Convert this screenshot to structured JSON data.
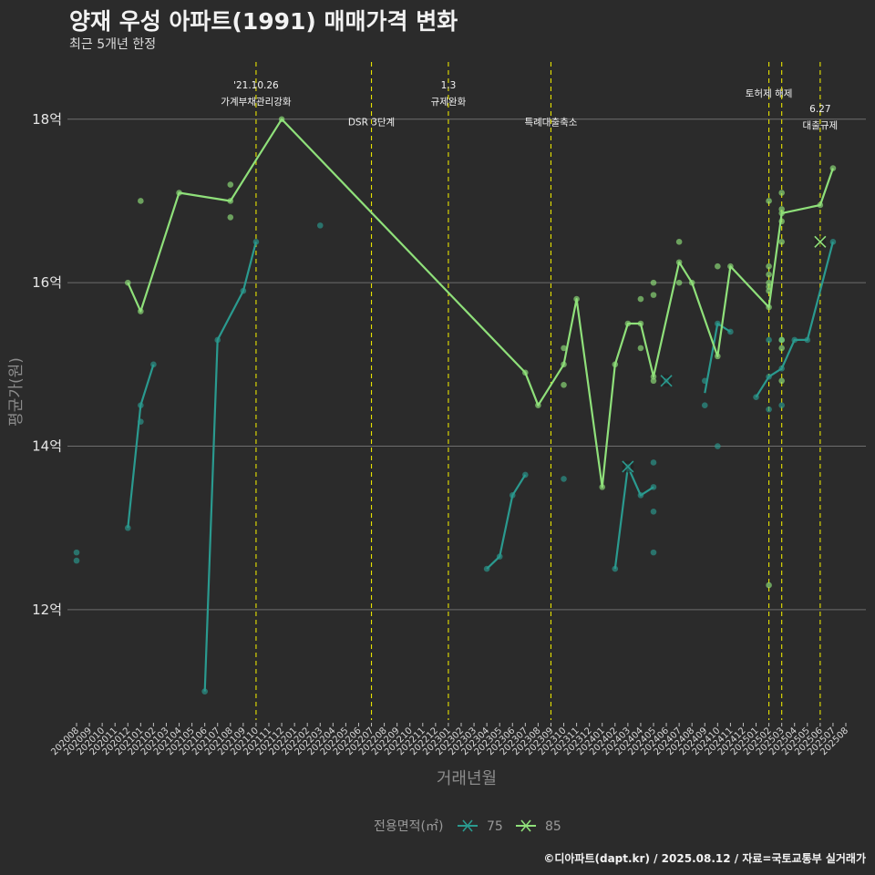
{
  "title": "양재 우성 아파트(1991) 매매가격 변화",
  "subtitle": "최근 5개년 한정",
  "caption": "©디아파트(dapt.kr) / 2025.08.12 / 자료=국토교통부 실거래가",
  "chart_data": {
    "type": "line",
    "xlabel": "거래년월",
    "ylabel": "평균가(원)",
    "ylim": [
      10.65,
      18.7
    ],
    "yticks": [
      {
        "value": 12,
        "label": "12억"
      },
      {
        "value": 14,
        "label": "14억"
      },
      {
        "value": 16,
        "label": "16억"
      },
      {
        "value": 18,
        "label": "18억"
      }
    ],
    "grid": true,
    "x_categories": [
      "202008",
      "202009",
      "202010",
      "202011",
      "202012",
      "202101",
      "202102",
      "202103",
      "202104",
      "202105",
      "202106",
      "202107",
      "202108",
      "202109",
      "202110",
      "202111",
      "202112",
      "202201",
      "202202",
      "202203",
      "202204",
      "202205",
      "202206",
      "202207",
      "202208",
      "202209",
      "202210",
      "202211",
      "202212",
      "202301",
      "202302",
      "202303",
      "202304",
      "202305",
      "202306",
      "202307",
      "202308",
      "202309",
      "202310",
      "202311",
      "202312",
      "202401",
      "202402",
      "202403",
      "202404",
      "202405",
      "202406",
      "202407",
      "202408",
      "202409",
      "202410",
      "202411",
      "202412",
      "202501",
      "202502",
      "202503",
      "202504",
      "202505",
      "202506",
      "202507",
      "202508"
    ],
    "legend": {
      "title": "전용면적(㎡)",
      "position": "bottom"
    },
    "series": [
      {
        "name": "75",
        "color": "#2a9a8f",
        "segments": [
          [
            [
              "202012",
              13.0
            ],
            [
              "202101",
              14.5
            ],
            [
              "202102",
              15.0
            ]
          ],
          [
            [
              "202106",
              11.0
            ],
            [
              "202107",
              15.3
            ],
            [
              "202109",
              15.9
            ],
            [
              "202110",
              16.5
            ]
          ],
          [
            [
              "202304",
              12.5
            ],
            [
              "202305",
              12.65
            ],
            [
              "202306",
              13.4
            ],
            [
              "202307",
              13.65
            ]
          ],
          [
            [
              "202402",
              12.5
            ],
            [
              "202403",
              13.75
            ],
            [
              "202404",
              13.4
            ],
            [
              "202405",
              13.5
            ]
          ],
          [
            [
              "202409",
              14.65
            ],
            [
              "202410",
              15.5
            ],
            [
              "202411",
              15.4
            ]
          ],
          [
            [
              "202501",
              14.6
            ],
            [
              "202502",
              14.85
            ],
            [
              "202503",
              14.95
            ],
            [
              "202504",
              15.3
            ],
            [
              "202505",
              15.3
            ],
            [
              "202507",
              16.5
            ]
          ]
        ],
        "points": [
          [
            "202008",
            12.7
          ],
          [
            "202008",
            12.6
          ],
          [
            "202012",
            13.0
          ],
          [
            "202101",
            14.5
          ],
          [
            "202101",
            14.3
          ],
          [
            "202102",
            15.0
          ],
          [
            "202106",
            11.0
          ],
          [
            "202107",
            15.3
          ],
          [
            "202109",
            15.9
          ],
          [
            "202110",
            16.5
          ],
          [
            "202203",
            16.7
          ],
          [
            "202304",
            12.5
          ],
          [
            "202305",
            12.65
          ],
          [
            "202306",
            13.4
          ],
          [
            "202307",
            13.65
          ],
          [
            "202310",
            13.6
          ],
          [
            "202402",
            12.5
          ],
          [
            "202403",
            13.75
          ],
          [
            "202404",
            13.4
          ],
          [
            "202405",
            13.5
          ],
          [
            "202405",
            13.8
          ],
          [
            "202405",
            13.2
          ],
          [
            "202405",
            12.7
          ],
          [
            "202406",
            14.8
          ],
          [
            "202409",
            14.8
          ],
          [
            "202409",
            14.5
          ],
          [
            "202410",
            15.5
          ],
          [
            "202410",
            14.0
          ],
          [
            "202411",
            15.4
          ],
          [
            "202501",
            14.6
          ],
          [
            "202502",
            14.85
          ],
          [
            "202502",
            15.3
          ],
          [
            "202502",
            14.45
          ],
          [
            "202503",
            14.95
          ],
          [
            "202503",
            14.5
          ],
          [
            "202503",
            15.3
          ],
          [
            "202504",
            15.3
          ],
          [
            "202505",
            15.3
          ],
          [
            "202507",
            16.5
          ]
        ],
        "crosses": [
          [
            "202403",
            13.75
          ],
          [
            "202406",
            14.8
          ]
        ]
      },
      {
        "name": "85",
        "color": "#8fe07a",
        "segments": [
          [
            [
              "202012",
              16.0
            ],
            [
              "202101",
              15.65
            ],
            [
              "202104",
              17.1
            ],
            [
              "202108",
              17.0
            ],
            [
              "202110",
              17.5
            ],
            [
              "202112",
              18.0
            ],
            [
              "202307",
              14.9
            ],
            [
              "202308",
              14.5
            ],
            [
              "202310",
              15.0
            ],
            [
              "202311",
              15.8
            ],
            [
              "202401",
              13.5
            ],
            [
              "202402",
              15.0
            ],
            [
              "202403",
              15.5
            ],
            [
              "202404",
              15.5
            ],
            [
              "202405",
              14.85
            ],
            [
              "202407",
              16.25
            ],
            [
              "202408",
              16.0
            ],
            [
              "202410",
              15.1
            ],
            [
              "202411",
              16.2
            ],
            [
              "202502",
              15.7
            ],
            [
              "202503",
              16.85
            ],
            [
              "202506",
              16.95
            ],
            [
              "202507",
              17.4
            ]
          ]
        ],
        "points": [
          [
            "202012",
            16.0
          ],
          [
            "202101",
            15.65
          ],
          [
            "202101",
            17.0
          ],
          [
            "202104",
            17.1
          ],
          [
            "202108",
            17.0
          ],
          [
            "202108",
            17.2
          ],
          [
            "202108",
            16.8
          ],
          [
            "202112",
            18.0
          ],
          [
            "202307",
            14.9
          ],
          [
            "202308",
            14.5
          ],
          [
            "202310",
            15.0
          ],
          [
            "202310",
            15.2
          ],
          [
            "202310",
            14.75
          ],
          [
            "202311",
            15.8
          ],
          [
            "202401",
            13.5
          ],
          [
            "202402",
            15.0
          ],
          [
            "202403",
            15.5
          ],
          [
            "202404",
            15.5
          ],
          [
            "202404",
            15.8
          ],
          [
            "202404",
            15.2
          ],
          [
            "202405",
            14.85
          ],
          [
            "202405",
            16.0
          ],
          [
            "202405",
            15.85
          ],
          [
            "202405",
            14.8
          ],
          [
            "202407",
            16.25
          ],
          [
            "202407",
            16.5
          ],
          [
            "202407",
            16.0
          ],
          [
            "202408",
            16.0
          ],
          [
            "202410",
            15.1
          ],
          [
            "202410",
            16.2
          ],
          [
            "202411",
            16.2
          ],
          [
            "202502",
            15.7
          ],
          [
            "202502",
            16.2
          ],
          [
            "202502",
            16.1
          ],
          [
            "202502",
            16.0
          ],
          [
            "202502",
            15.95
          ],
          [
            "202502",
            15.9
          ],
          [
            "202502",
            17.0
          ],
          [
            "202502",
            12.3
          ],
          [
            "202503",
            16.85
          ],
          [
            "202503",
            17.1
          ],
          [
            "202503",
            16.9
          ],
          [
            "202503",
            16.75
          ],
          [
            "202503",
            16.5
          ],
          [
            "202503",
            15.3
          ],
          [
            "202503",
            15.2
          ],
          [
            "202503",
            14.8
          ],
          [
            "202506",
            16.95
          ],
          [
            "202507",
            17.4
          ]
        ],
        "crosses": [
          [
            "202506",
            16.5
          ]
        ]
      }
    ],
    "events": [
      {
        "x": "202110",
        "lines": [
          "'21.10.26",
          "가계부채관리강화"
        ],
        "y": [
          18.42,
          18.22
        ]
      },
      {
        "x": "202207",
        "lines": [
          "DSR 3단계"
        ],
        "y": [
          17.97
        ]
      },
      {
        "x": "202301",
        "lines": [
          "1.3",
          "규제완화"
        ],
        "y": [
          18.42,
          18.22
        ]
      },
      {
        "x": "202309",
        "lines": [
          "특례대출축소"
        ],
        "y": [
          17.97
        ]
      },
      {
        "x": "202502",
        "lines": [
          "토허제 해제"
        ],
        "y": [
          18.32
        ]
      },
      {
        "x": "202503",
        "lines": [],
        "y": []
      },
      {
        "x": "202506",
        "lines": [
          "6.27",
          "대출규제"
        ],
        "y": [
          18.13,
          17.93
        ]
      }
    ]
  }
}
